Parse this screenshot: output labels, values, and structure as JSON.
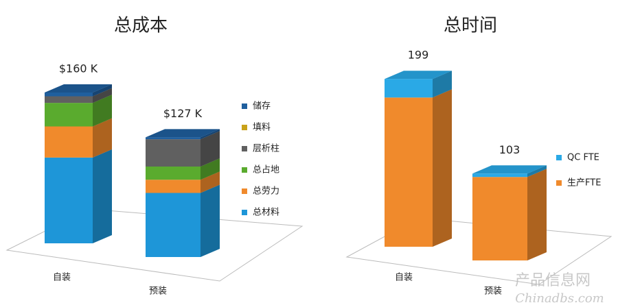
{
  "chart_data": [
    {
      "type": "bar3d-stacked",
      "title": "总成本",
      "categories": [
        "自装",
        "预装"
      ],
      "series": [
        {
          "name": "总材料",
          "color": "#1e96d8",
          "values": [
            91,
            68
          ]
        },
        {
          "name": "总劳力",
          "color": "#f08a2c",
          "values": [
            33,
            14
          ]
        },
        {
          "name": "总占地",
          "color": "#5aab2e",
          "values": [
            25,
            14
          ]
        },
        {
          "name": "层析柱",
          "color": "#606060",
          "values": [
            7,
            29
          ]
        },
        {
          "name": "填料",
          "color": "#c9a21a",
          "values": [
            0,
            0
          ]
        },
        {
          "name": "储存",
          "color": "#1f5f9e",
          "values": [
            4,
            2
          ]
        }
      ],
      "totals": {
        "values": [
          160,
          127
        ],
        "value_labels": [
          "$160 K",
          "$127 K"
        ]
      }
    },
    {
      "type": "bar3d-stacked",
      "title": "总时间",
      "categories": [
        "自装",
        "预装"
      ],
      "series": [
        {
          "name": "生产FTE",
          "color": "#f08a2c",
          "values": [
            177,
            99
          ]
        },
        {
          "name": "QC FTE",
          "color": "#2aa9e6",
          "values": [
            22,
            4
          ]
        }
      ],
      "totals": {
        "values": [
          199,
          103
        ],
        "value_labels": [
          "199",
          "103"
        ]
      }
    }
  ],
  "watermark": {
    "cn": "产品信息网",
    "en": "Chinadbs.com"
  }
}
